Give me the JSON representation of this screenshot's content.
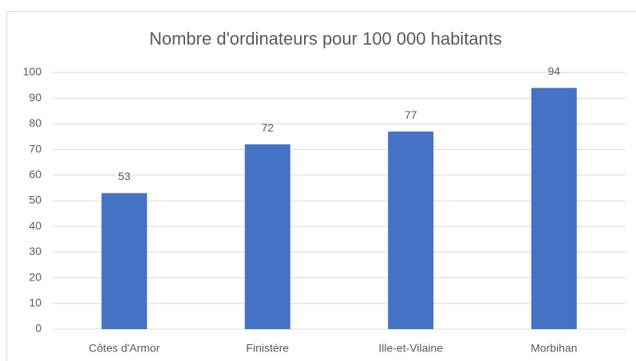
{
  "chart_data": {
    "type": "bar",
    "title": "Nombre d'ordinateurs pour 100 000 habitants",
    "categories": [
      "Côtes d'Armor",
      "Finistère",
      "Ille-et-Vilaine",
      "Morbihan"
    ],
    "values": [
      53,
      72,
      77,
      94
    ],
    "color": "#4472c4",
    "ylim": [
      0,
      100
    ],
    "yticks": [
      0,
      10,
      20,
      30,
      40,
      50,
      60,
      70,
      80,
      90,
      100
    ],
    "grid": true
  }
}
